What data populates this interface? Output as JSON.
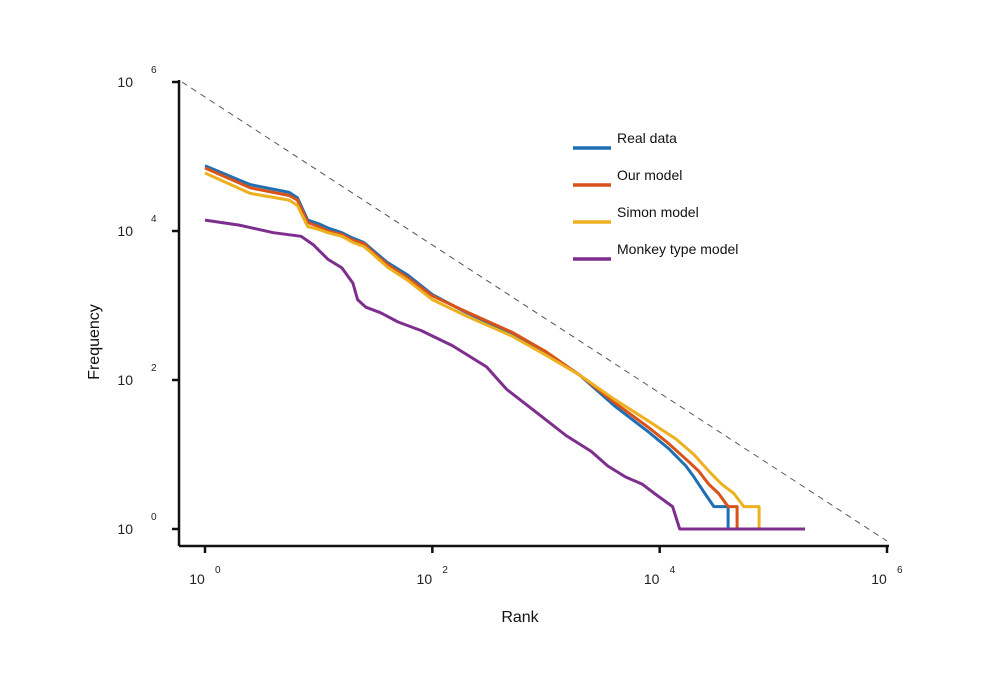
{
  "chart_data": {
    "type": "line",
    "x_scale": "log",
    "y_scale": "log",
    "xlabel": "Rank",
    "ylabel": "Frequency",
    "xlim": [
      1,
      1000000
    ],
    "ylim": [
      1,
      1000000
    ],
    "x_ticks": [
      {
        "value": 1,
        "base": "10",
        "exp": "0"
      },
      {
        "value": 100,
        "base": "10",
        "exp": "2"
      },
      {
        "value": 10000,
        "base": "10",
        "exp": "4"
      },
      {
        "value": 1000000,
        "base": "10",
        "exp": "6"
      }
    ],
    "y_ticks": [
      {
        "value": 1,
        "base": "10",
        "exp": "0"
      },
      {
        "value": 100,
        "base": "10",
        "exp": "2"
      },
      {
        "value": 10000,
        "base": "10",
        "exp": "4"
      },
      {
        "value": 1000000,
        "base": "10",
        "exp": "6"
      }
    ],
    "grid": false,
    "legend": "top-right",
    "reference_line": {
      "from": [
        1,
        1000000
      ],
      "to": [
        1000000,
        1
      ],
      "style": "dashed",
      "color": "#555555"
    },
    "series": [
      {
        "name": "Real data",
        "color": "#1f6fb5",
        "points": [
          [
            1,
            75000
          ],
          [
            2.5,
            42000
          ],
          [
            5.5,
            33000
          ],
          [
            6.5,
            28000
          ],
          [
            8,
            14000
          ],
          [
            10,
            12500
          ],
          [
            12,
            11000
          ],
          [
            16,
            9500
          ],
          [
            20,
            8000
          ],
          [
            25,
            7000
          ],
          [
            30,
            5500
          ],
          [
            40,
            3800
          ],
          [
            60,
            2600
          ],
          [
            100,
            1400
          ],
          [
            200,
            800
          ],
          [
            500,
            420
          ],
          [
            1000,
            230
          ],
          [
            2000,
            115
          ],
          [
            4000,
            45
          ],
          [
            8000,
            20
          ],
          [
            12000,
            12
          ],
          [
            17000,
            7
          ],
          [
            20000,
            5
          ],
          [
            25000,
            3
          ],
          [
            30000,
            2
          ],
          [
            40000,
            2
          ],
          [
            40000,
            1
          ]
        ]
      },
      {
        "name": "Our model",
        "color": "#d95319",
        "points": [
          [
            1,
            70000
          ],
          [
            2.5,
            38000
          ],
          [
            5.5,
            30000
          ],
          [
            6.5,
            26000
          ],
          [
            8,
            13000
          ],
          [
            10,
            11500
          ],
          [
            12,
            10000
          ],
          [
            16,
            9000
          ],
          [
            20,
            7500
          ],
          [
            25,
            6800
          ],
          [
            30,
            5200
          ],
          [
            40,
            3600
          ],
          [
            60,
            2400
          ],
          [
            100,
            1350
          ],
          [
            200,
            820
          ],
          [
            500,
            440
          ],
          [
            1000,
            240
          ],
          [
            2000,
            115
          ],
          [
            4000,
            50
          ],
          [
            8000,
            23
          ],
          [
            12000,
            14
          ],
          [
            18000,
            8
          ],
          [
            22000,
            6
          ],
          [
            27000,
            4
          ],
          [
            33000,
            3
          ],
          [
            40000,
            2
          ],
          [
            48000,
            2
          ],
          [
            48000,
            1
          ]
        ]
      },
      {
        "name": "Simon model",
        "color": "#edb120",
        "points": [
          [
            1,
            60000
          ],
          [
            2.5,
            32000
          ],
          [
            5.5,
            26000
          ],
          [
            6.5,
            22000
          ],
          [
            8,
            11500
          ],
          [
            10,
            10500
          ],
          [
            12,
            9500
          ],
          [
            16,
            8500
          ],
          [
            20,
            7000
          ],
          [
            25,
            6200
          ],
          [
            30,
            4900
          ],
          [
            40,
            3300
          ],
          [
            60,
            2200
          ],
          [
            100,
            1200
          ],
          [
            200,
            720
          ],
          [
            500,
            390
          ],
          [
            1000,
            215
          ],
          [
            2000,
            115
          ],
          [
            4000,
            55
          ],
          [
            8000,
            28
          ],
          [
            14000,
            16
          ],
          [
            20000,
            10
          ],
          [
            27000,
            6
          ],
          [
            35000,
            4
          ],
          [
            45000,
            3
          ],
          [
            55000,
            2
          ],
          [
            75000,
            2
          ],
          [
            75000,
            1
          ]
        ]
      },
      {
        "name": "Monkey type model",
        "color": "#7e2f8e",
        "points": [
          [
            1,
            14000
          ],
          [
            2,
            12000
          ],
          [
            4,
            9500
          ],
          [
            7,
            8500
          ],
          [
            9,
            6500
          ],
          [
            12,
            4200
          ],
          [
            16,
            3200
          ],
          [
            20,
            2000
          ],
          [
            22,
            1200
          ],
          [
            26,
            950
          ],
          [
            35,
            800
          ],
          [
            50,
            600
          ],
          [
            80,
            460
          ],
          [
            150,
            290
          ],
          [
            300,
            150
          ],
          [
            450,
            75
          ],
          [
            800,
            38
          ],
          [
            1500,
            18
          ],
          [
            2500,
            11
          ],
          [
            3500,
            7
          ],
          [
            5000,
            5
          ],
          [
            7000,
            4
          ],
          [
            9000,
            3
          ],
          [
            13000,
            2
          ],
          [
            15000,
            1
          ],
          [
            190000,
            1
          ]
        ]
      }
    ]
  }
}
